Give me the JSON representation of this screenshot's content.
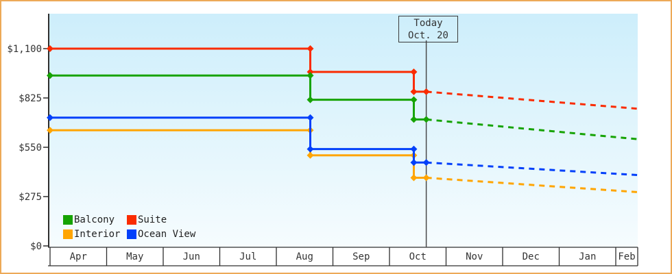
{
  "window": {
    "frame_border_color": "#EDA957",
    "background_color": "#ffffff"
  },
  "chart_data": {
    "type": "line",
    "description": "Cabin price history by month with dotted price forecast after today marker",
    "plot": {
      "bg_gradient_top": "#CDEEFB",
      "bg_gradient_bottom": "#F6FCFE",
      "axis_color": "#2e2e2e",
      "grid": "off",
      "legend_position": "bottom-left-inside"
    },
    "x_axis": {
      "months": [
        "Apr",
        "May",
        "Jun",
        "Jul",
        "Aug",
        "Sep",
        "Oct",
        "Nov",
        "Dec",
        "Jan",
        "Feb"
      ]
    },
    "y_axis": {
      "min": 0,
      "max": 1100,
      "ticks": [
        {
          "label": "$0",
          "value": 0
        },
        {
          "label": "$275",
          "value": 275
        },
        {
          "label": "$550",
          "value": 550
        },
        {
          "label": "$825",
          "value": 825
        },
        {
          "label": "$1,100",
          "value": 1100
        }
      ]
    },
    "today": {
      "line1": "Today",
      "line2": "Oct. 20",
      "x": 6.65
    },
    "x_end": 10.39,
    "series": [
      {
        "name": "Suite",
        "color": "#FA2B00",
        "points": [
          [
            0,
            1100
          ],
          [
            4.6,
            1100
          ],
          [
            4.6,
            970
          ],
          [
            6.43,
            970
          ],
          [
            6.43,
            860
          ],
          [
            6.65,
            860
          ]
        ],
        "forecast": [
          [
            6.65,
            860
          ],
          [
            10.39,
            765
          ]
        ]
      },
      {
        "name": "Interior",
        "color": "#FFA502",
        "points": [
          [
            0,
            645
          ],
          [
            4.6,
            645
          ],
          [
            4.6,
            505
          ],
          [
            6.43,
            505
          ],
          [
            6.43,
            380
          ],
          [
            6.65,
            380
          ]
        ],
        "forecast": [
          [
            6.65,
            380
          ],
          [
            10.39,
            300
          ]
        ]
      },
      {
        "name": "Ocean View",
        "color": "#0340FA",
        "points": [
          [
            0,
            715
          ],
          [
            4.6,
            715
          ],
          [
            4.6,
            540
          ],
          [
            6.43,
            540
          ],
          [
            6.43,
            465
          ],
          [
            6.65,
            465
          ]
        ],
        "forecast": [
          [
            6.65,
            465
          ],
          [
            10.39,
            395
          ]
        ]
      },
      {
        "name": "Balcony",
        "color": "#16A303",
        "points": [
          [
            0,
            950
          ],
          [
            4.6,
            950
          ],
          [
            4.6,
            815
          ],
          [
            6.43,
            815
          ],
          [
            6.43,
            705
          ],
          [
            6.65,
            705
          ]
        ],
        "forecast": [
          [
            6.65,
            705
          ],
          [
            10.39,
            595
          ]
        ]
      }
    ],
    "legend": {
      "items": [
        {
          "label": "Balcony",
          "color": "#16A303"
        },
        {
          "label": "Suite",
          "color": "#FA2B00"
        },
        {
          "label": "Interior",
          "color": "#FFA502"
        },
        {
          "label": "Ocean View",
          "color": "#0340FA"
        }
      ]
    }
  }
}
